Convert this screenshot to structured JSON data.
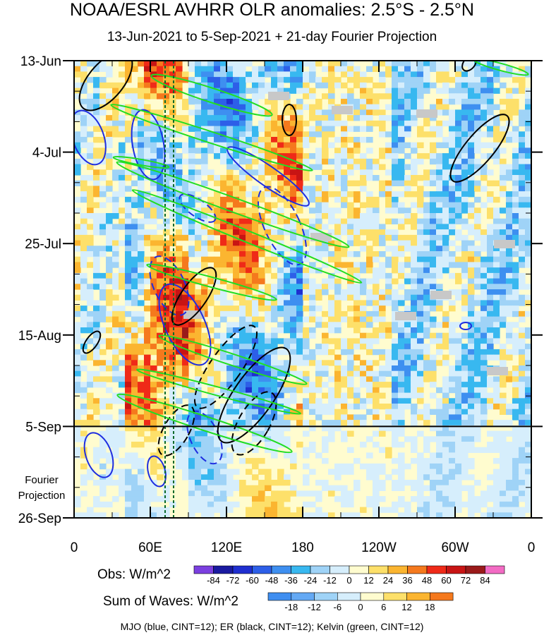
{
  "chart_data": {
    "type": "heatmap",
    "title": "NOAA/ESRL AVHRR OLR anomalies: 2.5°S - 2.5°N",
    "subtitle": "13-Jun-2021 to 5-Sep-2021 + 21-day Fourier Projection",
    "y_ticks": [
      "13-Jun",
      "4-Jul",
      "25-Jul",
      "15-Aug",
      "5-Sep",
      "26-Sep"
    ],
    "x_ticks": [
      "0",
      "60E",
      "120E",
      "180",
      "120W",
      "60W",
      "0"
    ],
    "x_range_deg_east": [
      0,
      360
    ],
    "projection_label": "Fourier Projection",
    "obs_colorbar": {
      "label": "Obs: W/m^2",
      "ticks": [
        "-84",
        "-72",
        "-60",
        "-48",
        "-36",
        "-24",
        "-12",
        "0",
        "12",
        "24",
        "36",
        "48",
        "60",
        "72",
        "84"
      ],
      "colors": [
        "#7b3fe0",
        "#1a1aa0",
        "#1f2fd0",
        "#2d5fe8",
        "#3e8ff0",
        "#38b8f0",
        "#9fd3f7",
        "#d6eefc",
        "#fffccf",
        "#fde06a",
        "#fbb530",
        "#f5791d",
        "#ef2a18",
        "#c81414",
        "#9a1a1a",
        "#f36bc4"
      ]
    },
    "waves_colorbar": {
      "label": "Sum of Waves: W/m^2",
      "ticks": [
        "-18",
        "-12",
        "-6",
        "0",
        "6",
        "12",
        "18"
      ],
      "colors": [
        "#3f8ef0",
        "#64a9f4",
        "#9fd3f7",
        "#d6eefc",
        "#fffccf",
        "#fde06a",
        "#fbb530",
        "#f5791d"
      ]
    },
    "wave_legend": "MJO (blue, CINT=12); ER (black, CINT=12); Kelvin (green, CINT=12)",
    "series": [
      {
        "name": "MJO",
        "color": "#1e2de0"
      },
      {
        "name": "ER",
        "color": "#000000"
      },
      {
        "name": "Kelvin",
        "color": "#22dd22"
      }
    ]
  }
}
